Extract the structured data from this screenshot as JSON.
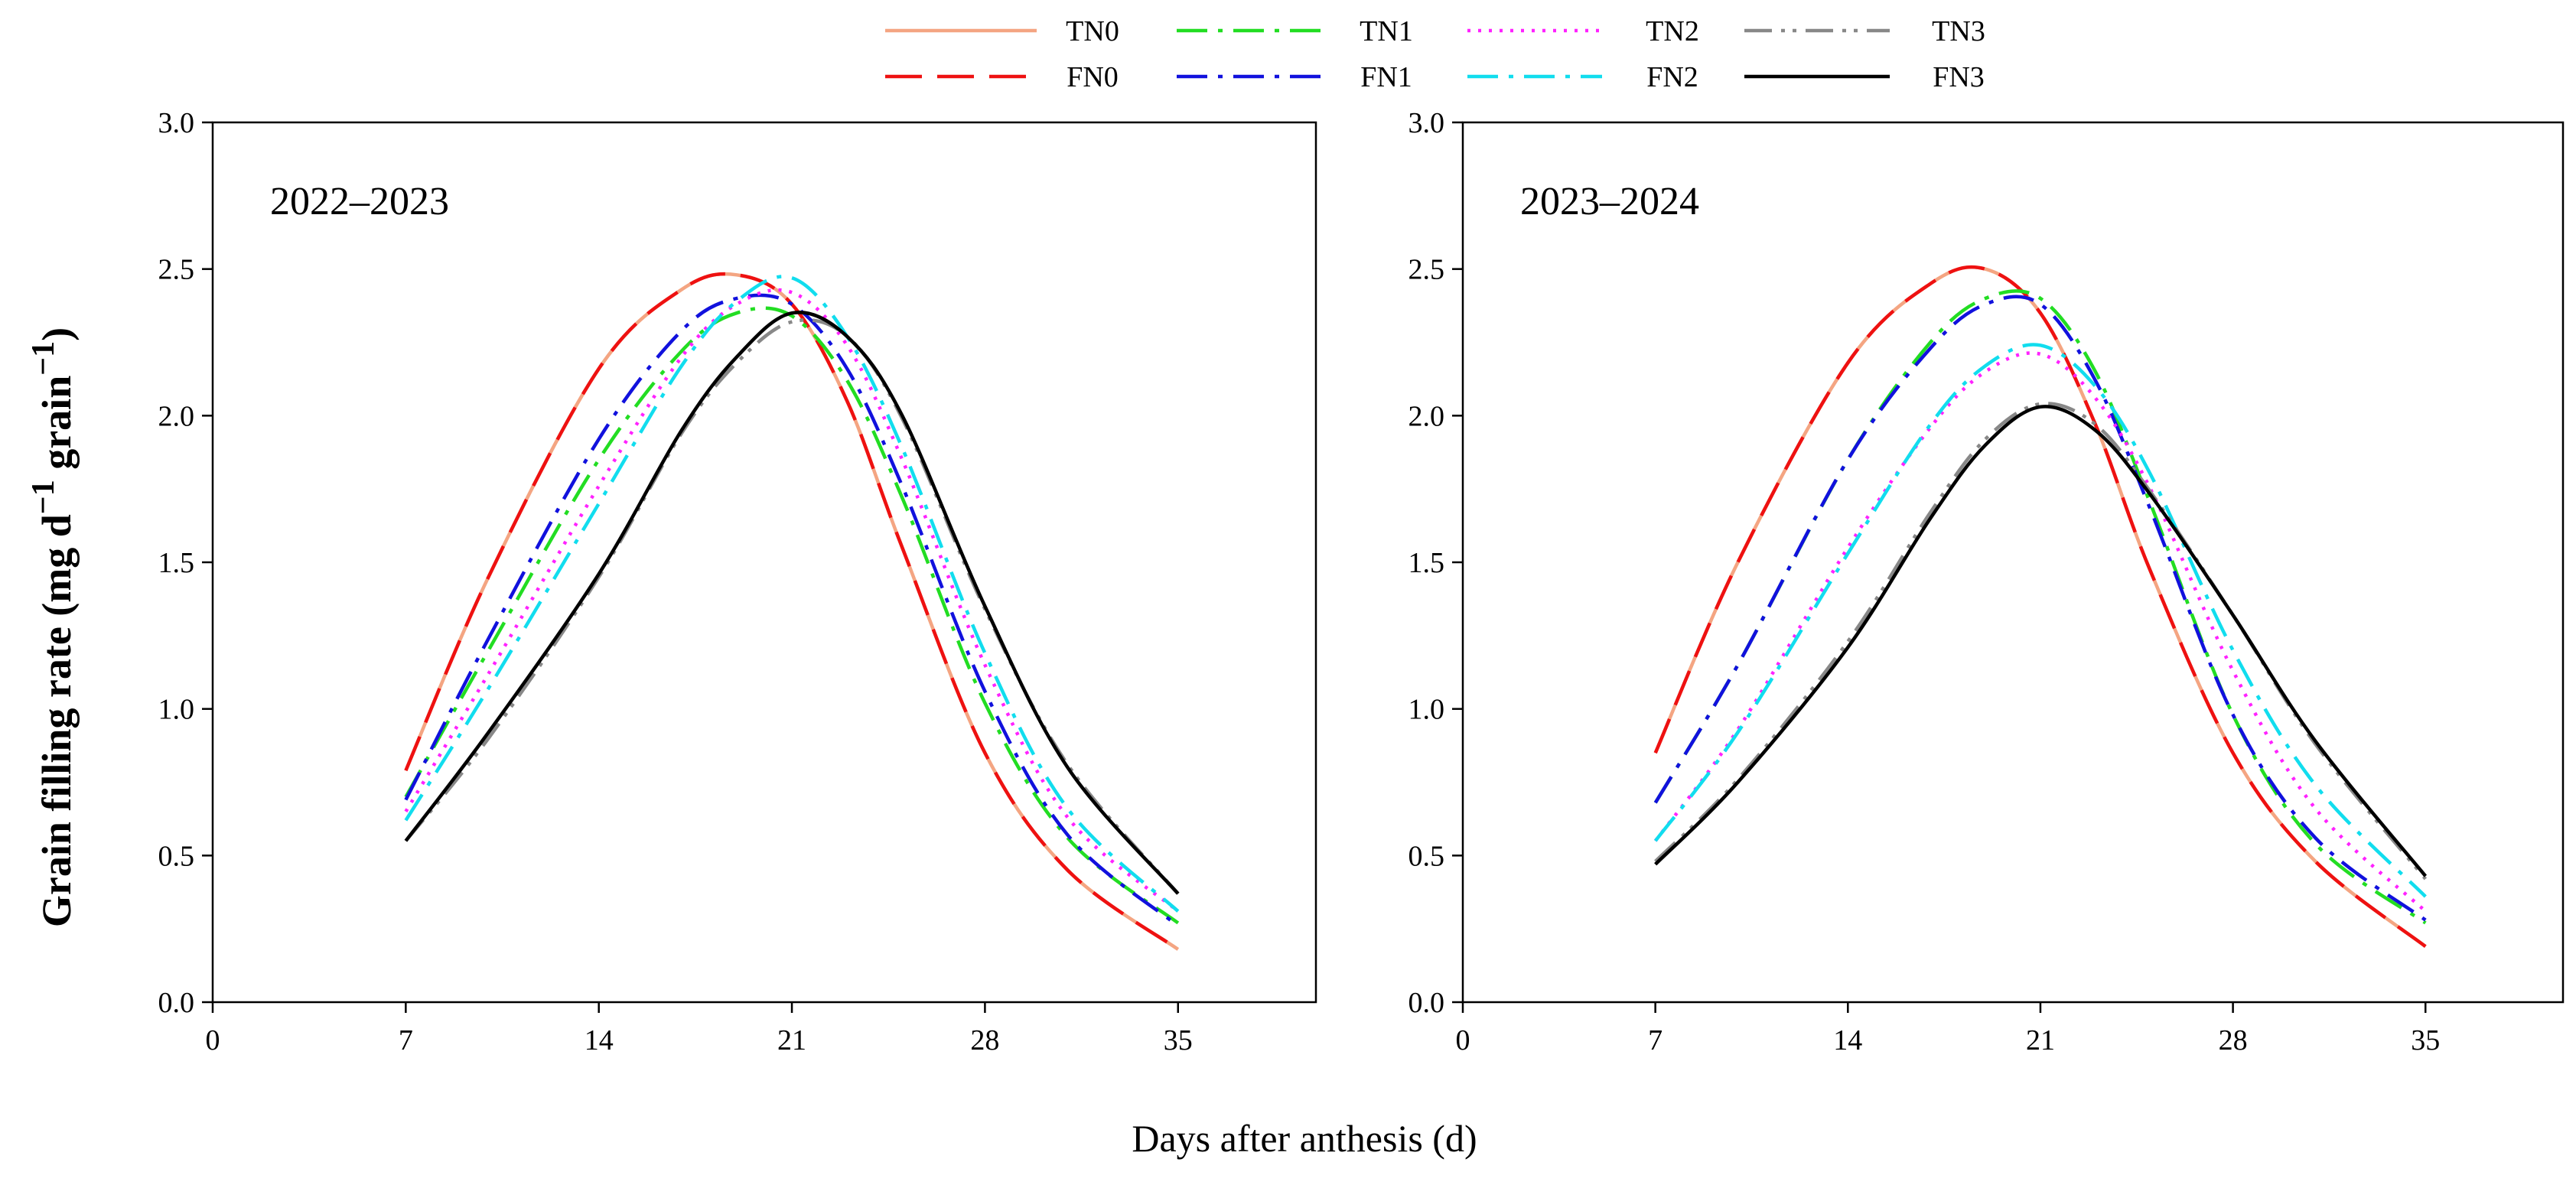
{
  "figure": {
    "ylabel": {
      "main": "Grain filling rate (mg d",
      "exp1": "−1",
      "mid": " grain",
      "exp2": "−1",
      "end": ")"
    },
    "xlabel": "Days after anthesis (d)"
  },
  "legend": [
    {
      "key": "TN0",
      "label": "TN0",
      "color": "#F4A582",
      "dash": "solid"
    },
    {
      "key": "TN1",
      "label": "TN1",
      "color": "#22DD22",
      "dash": "dashdot"
    },
    {
      "key": "TN2",
      "label": "TN2",
      "color": "#FF22FF",
      "dash": "dotted"
    },
    {
      "key": "TN3",
      "label": "TN3",
      "color": "#888888",
      "dash": "dashdotdot"
    },
    {
      "key": "FN0",
      "label": "FN0",
      "color": "#EE1111",
      "dash": "longdash"
    },
    {
      "key": "FN1",
      "label": "FN1",
      "color": "#1111DD",
      "dash": "dashdot"
    },
    {
      "key": "FN2",
      "label": "FN2",
      "color": "#11DDEE",
      "dash": "dashdot"
    },
    {
      "key": "FN3",
      "label": "FN3",
      "color": "#000000",
      "dash": "solid"
    }
  ],
  "chart_data": [
    {
      "type": "line",
      "title": "2022–2023",
      "xlabel": "Days after anthesis (d)",
      "ylabel": "Grain filling rate (mg d−1 grain−1)",
      "xlim": [
        0,
        40
      ],
      "ylim": [
        0,
        3.0
      ],
      "xticks": [
        0,
        7,
        14,
        21,
        28,
        35
      ],
      "yticks": [
        "0.0",
        "0.5",
        "1.0",
        "1.5",
        "2.0",
        "2.5",
        "3.0"
      ],
      "x": [
        7,
        10,
        14,
        17,
        19,
        21,
        23,
        25,
        28,
        31,
        35
      ],
      "series": [
        {
          "name": "TN0",
          "values": [
            0.79,
            1.45,
            2.16,
            2.43,
            2.48,
            2.38,
            2.05,
            1.55,
            0.85,
            0.45,
            0.18
          ]
        },
        {
          "name": "FN0",
          "values": [
            0.79,
            1.45,
            2.16,
            2.43,
            2.48,
            2.38,
            2.05,
            1.55,
            0.85,
            0.45,
            0.18
          ]
        },
        {
          "name": "TN1",
          "values": [
            0.7,
            1.2,
            1.85,
            2.22,
            2.35,
            2.34,
            2.12,
            1.72,
            1.02,
            0.56,
            0.27
          ]
        },
        {
          "name": "FN1",
          "values": [
            0.69,
            1.24,
            1.92,
            2.29,
            2.4,
            2.38,
            2.16,
            1.76,
            1.06,
            0.57,
            0.26
          ]
        },
        {
          "name": "TN2",
          "values": [
            0.65,
            1.12,
            1.76,
            2.2,
            2.38,
            2.42,
            2.24,
            1.85,
            1.15,
            0.63,
            0.31
          ]
        },
        {
          "name": "FN2",
          "values": [
            0.62,
            1.07,
            1.7,
            2.17,
            2.39,
            2.47,
            2.27,
            1.89,
            1.19,
            0.66,
            0.31
          ]
        },
        {
          "name": "TN3",
          "values": [
            0.55,
            0.9,
            1.45,
            1.94,
            2.18,
            2.32,
            2.27,
            1.99,
            1.34,
            0.81,
            0.37
          ]
        },
        {
          "name": "FN3",
          "values": [
            0.55,
            0.92,
            1.46,
            1.95,
            2.2,
            2.35,
            2.27,
            2.0,
            1.35,
            0.8,
            0.37
          ]
        }
      ]
    },
    {
      "type": "line",
      "title": "2023–2024",
      "xlabel": "Days after anthesis (d)",
      "ylabel": "Grain filling rate (mg d−1 grain−1)",
      "xlim": [
        0,
        40
      ],
      "ylim": [
        0,
        3.0
      ],
      "xticks": [
        0,
        7,
        14,
        21,
        28,
        35
      ],
      "yticks": [
        "0.0",
        "0.5",
        "1.0",
        "1.5",
        "2.0",
        "2.5",
        "3.0"
      ],
      "x": [
        7,
        10,
        14,
        17,
        19,
        21,
        23,
        25,
        28,
        31,
        35
      ],
      "series": [
        {
          "name": "TN0",
          "values": [
            0.85,
            1.5,
            2.18,
            2.45,
            2.5,
            2.35,
            1.97,
            1.47,
            0.85,
            0.48,
            0.19
          ]
        },
        {
          "name": "FN0",
          "values": [
            0.85,
            1.5,
            2.18,
            2.45,
            2.5,
            2.35,
            1.97,
            1.47,
            0.85,
            0.48,
            0.19
          ]
        },
        {
          "name": "TN1",
          "values": [
            0.68,
            1.15,
            1.85,
            2.25,
            2.4,
            2.4,
            2.15,
            1.7,
            0.98,
            0.54,
            0.27
          ]
        },
        {
          "name": "FN1",
          "values": [
            0.68,
            1.15,
            1.85,
            2.23,
            2.38,
            2.38,
            2.12,
            1.68,
            0.98,
            0.56,
            0.28
          ]
        },
        {
          "name": "TN2",
          "values": [
            0.55,
            0.93,
            1.55,
            1.96,
            2.15,
            2.21,
            2.06,
            1.75,
            1.13,
            0.66,
            0.31
          ]
        },
        {
          "name": "FN2",
          "values": [
            0.55,
            0.92,
            1.53,
            1.97,
            2.17,
            2.24,
            2.1,
            1.8,
            1.2,
            0.74,
            0.36
          ]
        },
        {
          "name": "TN3",
          "values": [
            0.48,
            0.76,
            1.23,
            1.67,
            1.92,
            2.04,
            1.97,
            1.74,
            1.32,
            0.88,
            0.42
          ]
        },
        {
          "name": "FN3",
          "values": [
            0.47,
            0.75,
            1.21,
            1.65,
            1.9,
            2.03,
            1.95,
            1.73,
            1.32,
            0.89,
            0.43
          ]
        }
      ]
    }
  ]
}
